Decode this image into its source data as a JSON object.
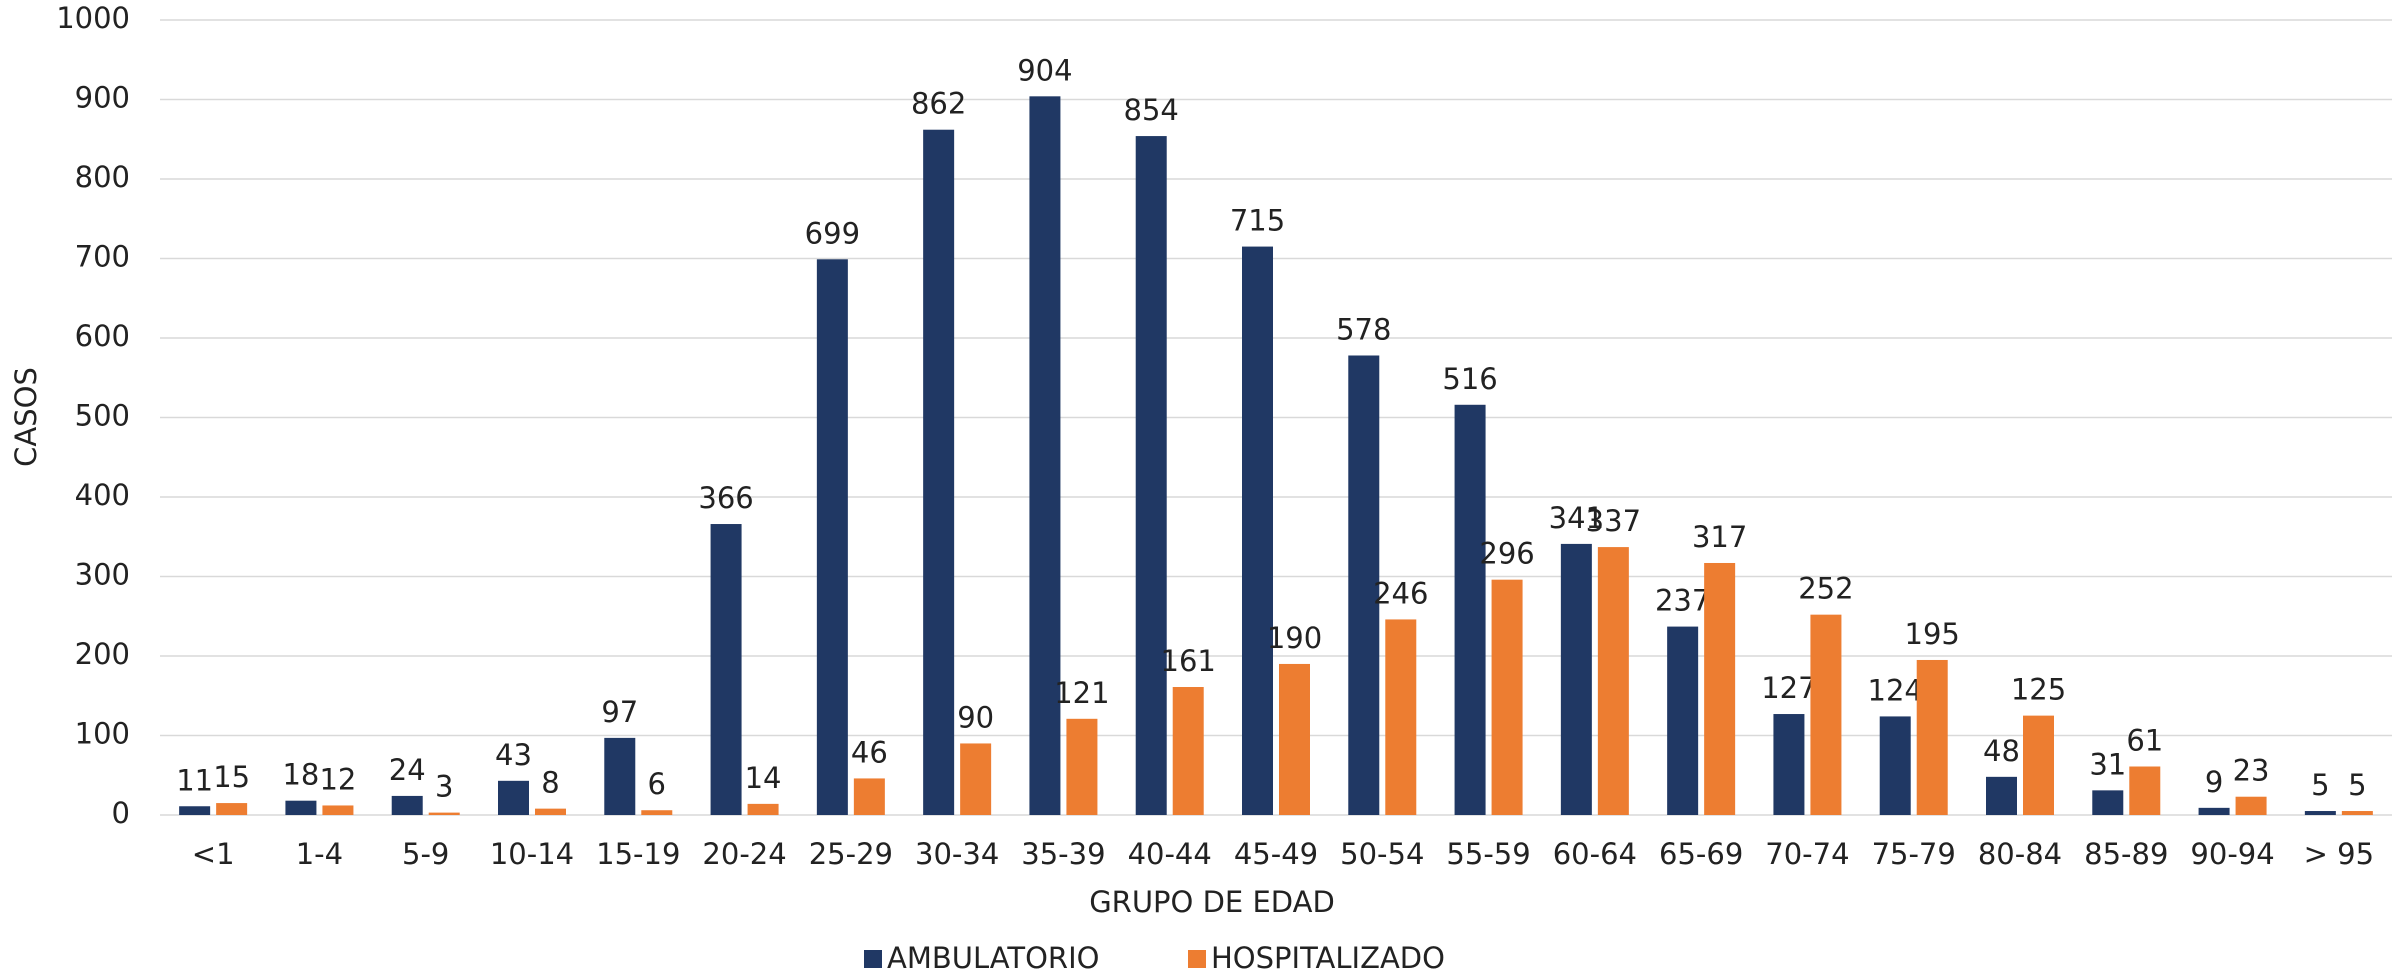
{
  "chart_data": {
    "type": "bar",
    "categories": [
      "<1",
      "1-4",
      "5-9",
      "10-14",
      "15-19",
      "20-24",
      "25-29",
      "30-34",
      "35-39",
      "40-44",
      "45-49",
      "50-54",
      "55-59",
      "60-64",
      "65-69",
      "70-74",
      "75-79",
      "80-84",
      "85-89",
      "90-94",
      "> 95"
    ],
    "series": [
      {
        "name": "AMBULATORIO",
        "color": "#203864",
        "values": [
          11,
          18,
          24,
          43,
          97,
          366,
          699,
          862,
          904,
          854,
          715,
          578,
          516,
          341,
          237,
          127,
          124,
          48,
          31,
          9,
          5
        ]
      },
      {
        "name": "HOSPITALIZADO",
        "color": "#ed7d31",
        "values": [
          15,
          12,
          3,
          8,
          6,
          14,
          46,
          90,
          121,
          161,
          190,
          246,
          296,
          337,
          317,
          252,
          195,
          125,
          61,
          23,
          5
        ]
      }
    ],
    "x_label": "GRUPO DE EDAD",
    "y_label": "CASOS",
    "ylim": [
      0,
      1000
    ],
    "yticks": [
      0,
      100,
      200,
      300,
      400,
      500,
      600,
      700,
      800,
      900,
      1000
    ],
    "grid": true,
    "legend": "bottom"
  }
}
